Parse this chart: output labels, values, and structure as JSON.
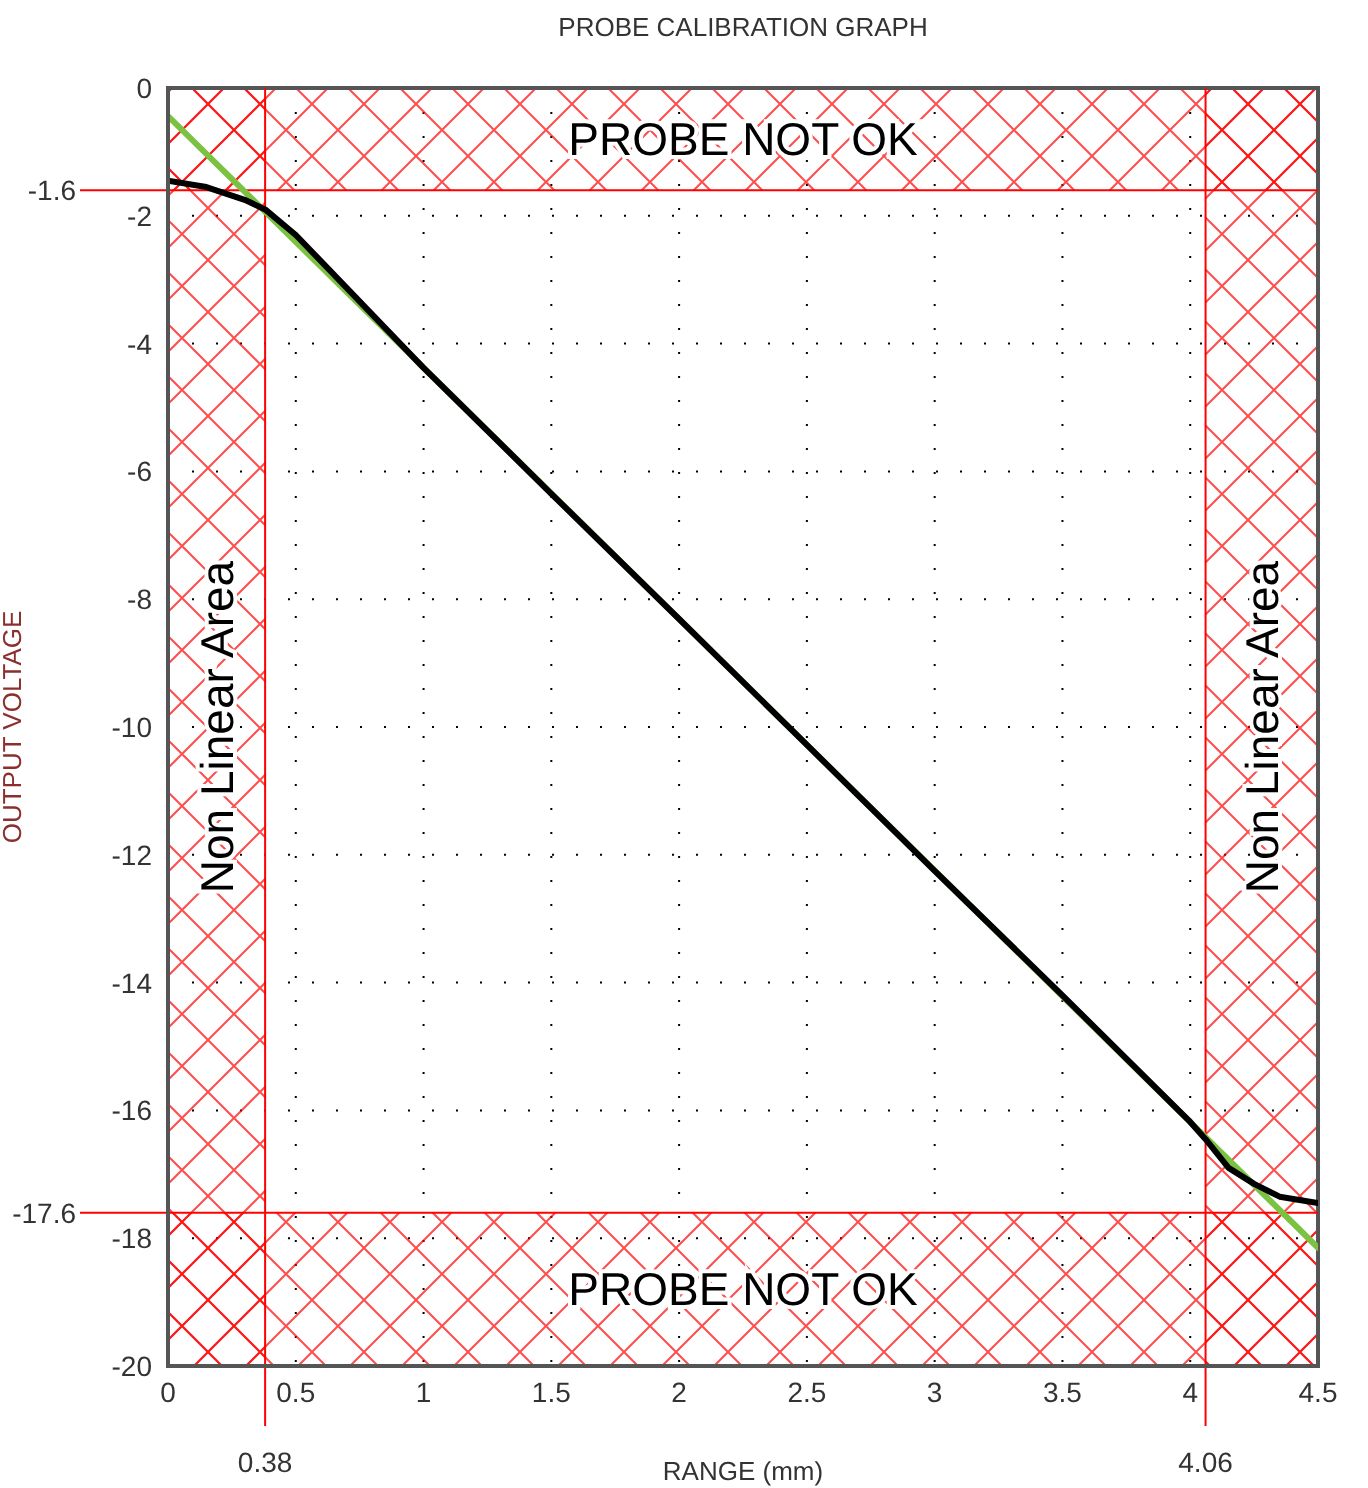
{
  "chart_data": {
    "type": "line",
    "title": "PROBE CALIBRATION GRAPH",
    "xlabel": "RANGE (mm)",
    "ylabel": "OUTPUT VOLTAGE",
    "xlim": [
      0,
      4.5
    ],
    "xticks": [
      0,
      0.5,
      1,
      1.5,
      2,
      2.5,
      3,
      3.5,
      4,
      4.5
    ],
    "ylim": [
      -20,
      0
    ],
    "yticks": [
      0,
      -2,
      -4,
      -6,
      -8,
      -10,
      -12,
      -14,
      -16,
      -18,
      -20
    ],
    "grid": true,
    "marker": "none",
    "line_style": "solid",
    "series": [
      {
        "color": "#7cc242",
        "x": [
          0,
          4.5
        ],
        "values": [
          -0.44,
          -18.15
        ]
      },
      {
        "color": "#000000",
        "x": [
          0,
          0.15,
          0.3,
          0.38,
          0.5,
          1,
          1.5,
          2,
          2.5,
          3,
          3.5,
          4,
          4.06,
          4.15,
          4.25,
          4.35,
          4.5
        ],
        "values": [
          -1.45,
          -1.55,
          -1.75,
          -1.9,
          -2.3,
          -4.38,
          -6.35,
          -8.31,
          -10.28,
          -12.25,
          -14.2,
          -16.18,
          -16.45,
          -16.9,
          -17.15,
          -17.35,
          -17.45
        ]
      }
    ],
    "ref_lines": [
      {
        "axis": "y",
        "value": -1.6,
        "label": "-1.6",
        "color": "#ff0000"
      },
      {
        "axis": "y",
        "value": -17.6,
        "label": "-17.6",
        "color": "#ff0000"
      },
      {
        "axis": "x",
        "value": 0.38,
        "label": "0.38",
        "color": "#ff0000"
      },
      {
        "axis": "x",
        "value": 4.06,
        "label": "4.06",
        "color": "#ff0000"
      }
    ],
    "bands": [
      {
        "axis": "y",
        "from": 0,
        "to": -1.6,
        "label": "PROBE NOT OK",
        "color": "#ff0000"
      },
      {
        "axis": "y",
        "from": -17.6,
        "to": -20,
        "label": "PROBE NOT OK",
        "color": "#ff0000"
      },
      {
        "axis": "x",
        "from": 0,
        "to": 0.38,
        "label": "Non Linear Area",
        "color": "#ff0000"
      },
      {
        "axis": "x",
        "from": 4.06,
        "to": 4.5,
        "label": "Non Linear Area",
        "color": "#ff0000"
      }
    ]
  }
}
